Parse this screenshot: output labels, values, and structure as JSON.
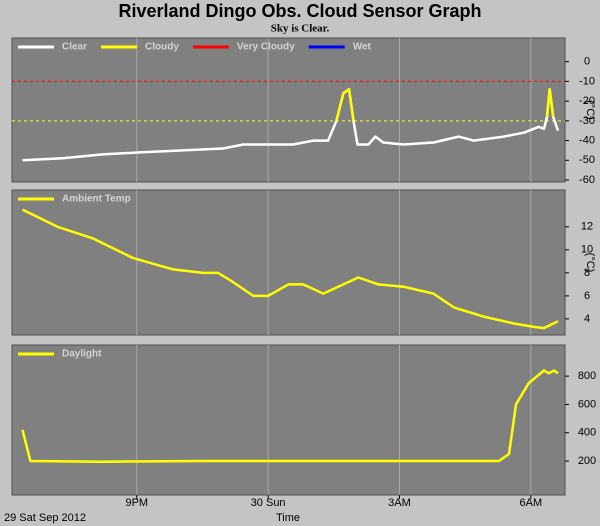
{
  "title": "Riverland Dingo Obs. Cloud Sensor Graph",
  "subtitle": "Sky is Clear.",
  "date_label": "29 Sat Sep 2012",
  "x_label": "Time",
  "chart_data": [
    {
      "type": "line",
      "y_label": "(°C)",
      "ylim": [
        -61,
        12
      ],
      "yticks": [
        0,
        -10,
        -20,
        -30,
        -40,
        -50,
        -60
      ],
      "thresholds": [
        {
          "value": -10,
          "color": "#ff0000"
        },
        {
          "value": -30,
          "color": "#ffff00"
        }
      ],
      "x": [
        18.39,
        19.31,
        20.22,
        21.07,
        22.05,
        22.97,
        23.43,
        24.0,
        24.57,
        25.03,
        25.37,
        25.56,
        25.72,
        25.85,
        25.95,
        26.04,
        26.29,
        26.45,
        26.63,
        27.09,
        27.78,
        28.35,
        28.69,
        29.38,
        29.84,
        30.18,
        30.3,
        30.37,
        30.43,
        30.51,
        30.62
      ],
      "series": [
        {
          "name": "Clear",
          "color": "#ffffff",
          "values": [
            -50,
            -49,
            -47,
            -46,
            -45,
            -44,
            -42,
            -42,
            -42,
            -40,
            -40,
            -30,
            -16,
            -14,
            -30,
            -42,
            -42,
            -38,
            -41,
            -42,
            -41,
            -38,
            -40,
            -38,
            -36,
            -33,
            -34,
            -28,
            -14,
            -28,
            -35
          ]
        },
        {
          "name": "Cloudy",
          "color": "#ffff00",
          "values": [
            null,
            null,
            null,
            null,
            null,
            null,
            null,
            null,
            null,
            null,
            null,
            -30,
            -16,
            -14,
            -30,
            null,
            null,
            null,
            null,
            null,
            null,
            null,
            null,
            null,
            null,
            null,
            null,
            -28,
            -14,
            -28,
            null
          ]
        },
        {
          "name": "Very Cloudy",
          "color": "#ff0000",
          "values": [
            null,
            null,
            null,
            null,
            null,
            null,
            null,
            null,
            null,
            null,
            null,
            null,
            null,
            null,
            null,
            null,
            null,
            null,
            null,
            null,
            null,
            null,
            null,
            null,
            null,
            null,
            null,
            null,
            null,
            null,
            null
          ]
        },
        {
          "name": "Wet",
          "color": "#0000ff",
          "values": [
            null,
            null,
            null,
            null,
            null,
            null,
            null,
            null,
            null,
            null,
            null,
            null,
            null,
            null,
            null,
            null,
            null,
            null,
            null,
            null,
            null,
            null,
            null,
            null,
            null,
            null,
            null,
            null,
            null,
            null,
            null
          ]
        }
      ]
    },
    {
      "type": "line",
      "y_label": "(°C)",
      "ylim": [
        2.6,
        15.2
      ],
      "yticks": [
        4,
        6,
        8,
        10,
        12
      ],
      "x": [
        18.39,
        19.19,
        19.99,
        20.91,
        21.83,
        22.52,
        22.86,
        23.2,
        23.66,
        24.0,
        24.46,
        24.8,
        25.26,
        25.72,
        26.06,
        26.52,
        27.09,
        27.78,
        28.24,
        28.92,
        29.61,
        30.07,
        30.3,
        30.62
      ],
      "series": [
        {
          "name": "Ambient Temp",
          "color": "#ffff00",
          "values": [
            13.5,
            12,
            11,
            9.3,
            8.3,
            8.0,
            8.0,
            7.2,
            6.0,
            6.0,
            7.0,
            7.0,
            6.2,
            7.0,
            7.6,
            7.0,
            6.8,
            6.2,
            5.0,
            4.2,
            3.6,
            3.3,
            3.2,
            3.8
          ]
        }
      ]
    },
    {
      "type": "line",
      "ylim": [
        -40,
        1020
      ],
      "yticks": [
        200,
        400,
        600,
        800
      ],
      "xlim": [
        18.15,
        30.78
      ],
      "xticks": [
        {
          "value": 21,
          "label": "9PM"
        },
        {
          "value": 24,
          "label": "30 Sun"
        },
        {
          "value": 27,
          "label": "3AM"
        },
        {
          "value": 30,
          "label": "6AM"
        }
      ],
      "x": [
        18.39,
        18.57,
        20.22,
        22.52,
        24.8,
        27.09,
        29.27,
        29.5,
        29.66,
        29.95,
        30.3,
        30.41,
        30.53,
        30.62
      ],
      "series": [
        {
          "name": "Daylight",
          "color": "#ffff00",
          "values": [
            420,
            200,
            195,
            200,
            200,
            200,
            200,
            250,
            600,
            750,
            840,
            820,
            840,
            820
          ]
        }
      ]
    }
  ]
}
